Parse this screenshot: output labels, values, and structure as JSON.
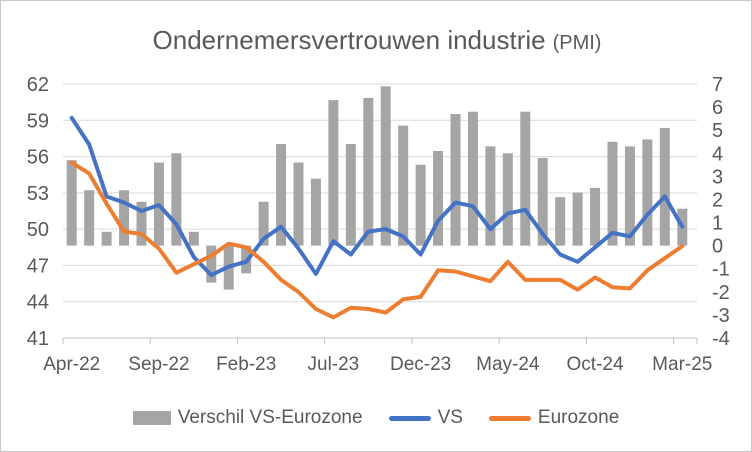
{
  "title": {
    "main": "Ondernemersvertrouwen industrie",
    "suffix": "(PMI)"
  },
  "legend": {
    "items": [
      {
        "label": "Verschil VS-Eurozone",
        "swatch": "bar",
        "color": "#A5A5A5"
      },
      {
        "label": "VS",
        "swatch": "line",
        "color": "#4472C4"
      },
      {
        "label": "Eurozone",
        "swatch": "line",
        "color": "#ED7D31"
      }
    ]
  },
  "colors": {
    "grid": "#D9D9D9",
    "axis_line": "#BFBFBF",
    "text": "#595959",
    "background": "#FFFFFF",
    "bar": "#A5A5A5",
    "vs_line": "#4472C4",
    "eurozone_line": "#ED7D31"
  },
  "chart_data": {
    "type": "combo-bar-line",
    "title": "Ondernemersvertrouwen industrie (PMI)",
    "grid": true,
    "legend_position": "bottom",
    "x": [
      "Apr-22",
      "May-22",
      "Jun-22",
      "Jul-22",
      "Aug-22",
      "Sep-22",
      "Oct-22",
      "Nov-22",
      "Dec-22",
      "Jan-23",
      "Feb-23",
      "Mar-23",
      "Apr-23",
      "May-23",
      "Jun-23",
      "Jul-23",
      "Aug-23",
      "Sep-23",
      "Oct-23",
      "Nov-23",
      "Dec-23",
      "Jan-24",
      "Feb-24",
      "Mar-24",
      "Apr-24",
      "May-24",
      "Jun-24",
      "Jul-24",
      "Aug-24",
      "Sep-24",
      "Oct-24",
      "Nov-24",
      "Dec-24",
      "Jan-25",
      "Feb-25",
      "Mar-25"
    ],
    "x_tick_labels": [
      "Apr-22",
      "Sep-22",
      "Feb-23",
      "Jul-23",
      "Dec-23",
      "May-24",
      "Oct-24",
      "Mar-25"
    ],
    "left_axis": {
      "min": 41,
      "max": 62,
      "step": 3,
      "ticks": [
        41,
        44,
        47,
        50,
        53,
        56,
        59,
        62
      ]
    },
    "right_axis": {
      "min": -4,
      "max": 7,
      "step": 1,
      "ticks": [
        -4,
        -3,
        -2,
        -1,
        0,
        1,
        2,
        3,
        4,
        5,
        6,
        7
      ]
    },
    "series": [
      {
        "name": "Verschil VS-Eurozone",
        "type": "bar",
        "axis": "right",
        "color": "#A5A5A5",
        "values": [
          3.7,
          2.4,
          0.6,
          2.4,
          1.9,
          3.6,
          4.0,
          0.6,
          -1.6,
          -1.9,
          -1.2,
          1.9,
          4.4,
          3.6,
          2.9,
          6.3,
          4.4,
          6.4,
          6.9,
          5.2,
          3.5,
          4.1,
          5.7,
          5.8,
          4.3,
          4.0,
          5.8,
          3.8,
          2.1,
          2.3,
          2.5,
          4.5,
          4.3,
          4.6,
          5.1,
          1.6
        ]
      },
      {
        "name": "VS",
        "type": "line",
        "axis": "left",
        "color": "#4472C4",
        "values": [
          59.2,
          57.0,
          52.7,
          52.2,
          51.5,
          52.0,
          50.4,
          47.7,
          46.2,
          46.9,
          47.3,
          49.2,
          50.2,
          48.4,
          46.3,
          49.0,
          47.9,
          49.8,
          50.0,
          49.4,
          47.9,
          50.7,
          52.2,
          51.9,
          50.0,
          51.3,
          51.6,
          49.6,
          47.9,
          47.3,
          48.5,
          49.7,
          49.4,
          51.2,
          52.7,
          50.2
        ]
      },
      {
        "name": "Eurozone",
        "type": "line",
        "axis": "left",
        "color": "#ED7D31",
        "values": [
          55.5,
          54.6,
          52.1,
          49.8,
          49.6,
          48.4,
          46.4,
          47.1,
          47.8,
          48.8,
          48.5,
          47.3,
          45.8,
          44.8,
          43.4,
          42.7,
          43.5,
          43.4,
          43.1,
          44.2,
          44.4,
          46.6,
          46.5,
          46.1,
          45.7,
          47.3,
          45.8,
          45.8,
          45.8,
          45.0,
          46.0,
          45.2,
          45.1,
          46.6,
          47.6,
          48.6
        ]
      }
    ]
  }
}
